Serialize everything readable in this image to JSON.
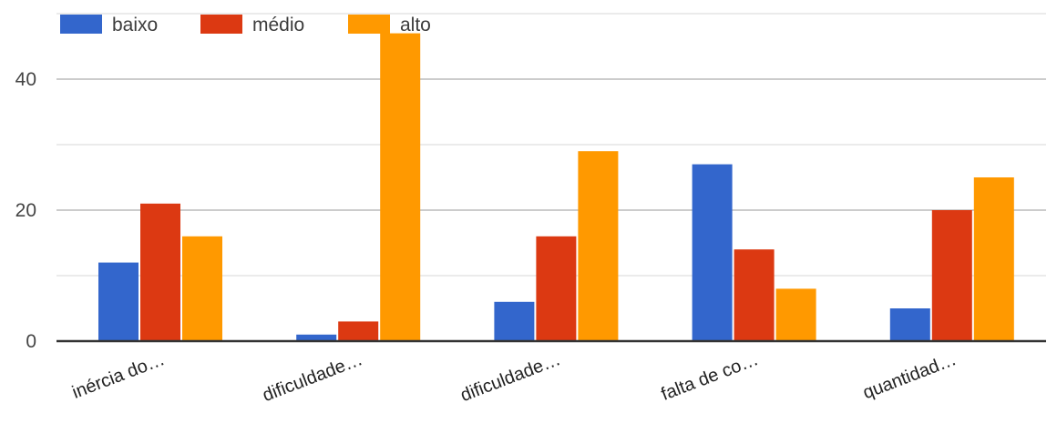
{
  "chart_data": {
    "type": "bar",
    "categories": [
      "inércia do…",
      "dificuldade…",
      "dificuldade…",
      "falta de co…",
      "quantidad…"
    ],
    "series": [
      {
        "name": "baixo",
        "color": "#3366cc",
        "values": [
          12,
          1,
          6,
          27,
          5
        ]
      },
      {
        "name": "médio",
        "color": "#dc3912",
        "values": [
          21,
          3,
          16,
          14,
          20
        ]
      },
      {
        "name": "alto",
        "color": "#ff9900",
        "values": [
          16,
          47,
          29,
          8,
          25
        ]
      }
    ],
    "yticks": [
      0,
      20,
      40
    ],
    "ylim": [
      0,
      50
    ],
    "grid": true,
    "legend_position": "top-left"
  }
}
